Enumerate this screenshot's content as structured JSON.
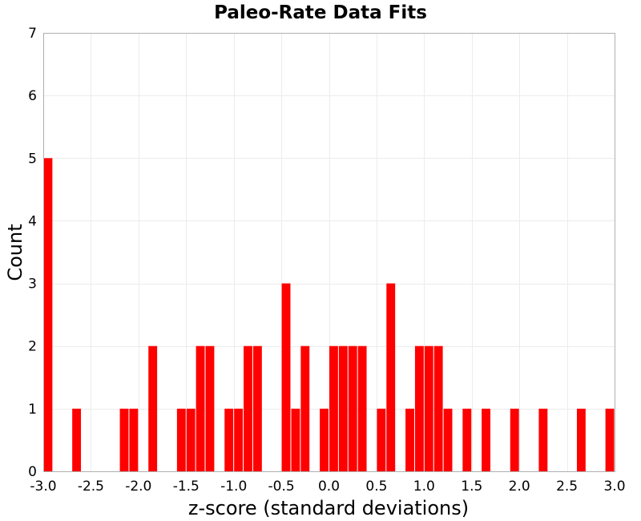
{
  "chart_data": {
    "type": "bar",
    "title": "Paleo-Rate Data Fits",
    "xlabel": "z-score (standard deviations)",
    "ylabel": "Count",
    "xlim": [
      -3.0,
      3.0
    ],
    "ylim": [
      0,
      7
    ],
    "bin_width": 0.1,
    "bar_color": "#ff0000",
    "grid_color": "#ececec",
    "x_ticks": [
      -3.0,
      -2.5,
      -2.0,
      -1.5,
      -1.0,
      -0.5,
      0.0,
      0.5,
      1.0,
      1.5,
      2.0,
      2.5,
      3.0
    ],
    "x_tick_labels": [
      "-3.0",
      "-2.5",
      "-2.0",
      "-1.5",
      "-1.0",
      "-0.5",
      "0.0",
      "0.5",
      "1.0",
      "1.5",
      "2.0",
      "2.5",
      "3.0"
    ],
    "y_ticks": [
      0,
      1,
      2,
      3,
      4,
      5,
      6,
      7
    ],
    "y_tick_labels": [
      "0",
      "1",
      "2",
      "3",
      "4",
      "5",
      "6",
      "7"
    ],
    "bins": [
      {
        "x": -2.95,
        "count": 5
      },
      {
        "x": -2.65,
        "count": 1
      },
      {
        "x": -2.15,
        "count": 1
      },
      {
        "x": -2.05,
        "count": 1
      },
      {
        "x": -1.85,
        "count": 2
      },
      {
        "x": -1.55,
        "count": 1
      },
      {
        "x": -1.45,
        "count": 1
      },
      {
        "x": -1.35,
        "count": 2
      },
      {
        "x": -1.25,
        "count": 2
      },
      {
        "x": -1.05,
        "count": 1
      },
      {
        "x": -0.95,
        "count": 1
      },
      {
        "x": -0.85,
        "count": 2
      },
      {
        "x": -0.75,
        "count": 2
      },
      {
        "x": -0.45,
        "count": 3
      },
      {
        "x": -0.35,
        "count": 1
      },
      {
        "x": -0.25,
        "count": 2
      },
      {
        "x": -0.05,
        "count": 1
      },
      {
        "x": 0.05,
        "count": 2
      },
      {
        "x": 0.15,
        "count": 2
      },
      {
        "x": 0.25,
        "count": 2
      },
      {
        "x": 0.35,
        "count": 2
      },
      {
        "x": 0.55,
        "count": 1
      },
      {
        "x": 0.65,
        "count": 3
      },
      {
        "x": 0.85,
        "count": 1
      },
      {
        "x": 0.95,
        "count": 2
      },
      {
        "x": 1.05,
        "count": 2
      },
      {
        "x": 1.15,
        "count": 2
      },
      {
        "x": 1.25,
        "count": 1
      },
      {
        "x": 1.45,
        "count": 1
      },
      {
        "x": 1.65,
        "count": 1
      },
      {
        "x": 1.95,
        "count": 1
      },
      {
        "x": 2.25,
        "count": 1
      },
      {
        "x": 2.65,
        "count": 1
      },
      {
        "x": 2.95,
        "count": 1
      }
    ]
  }
}
